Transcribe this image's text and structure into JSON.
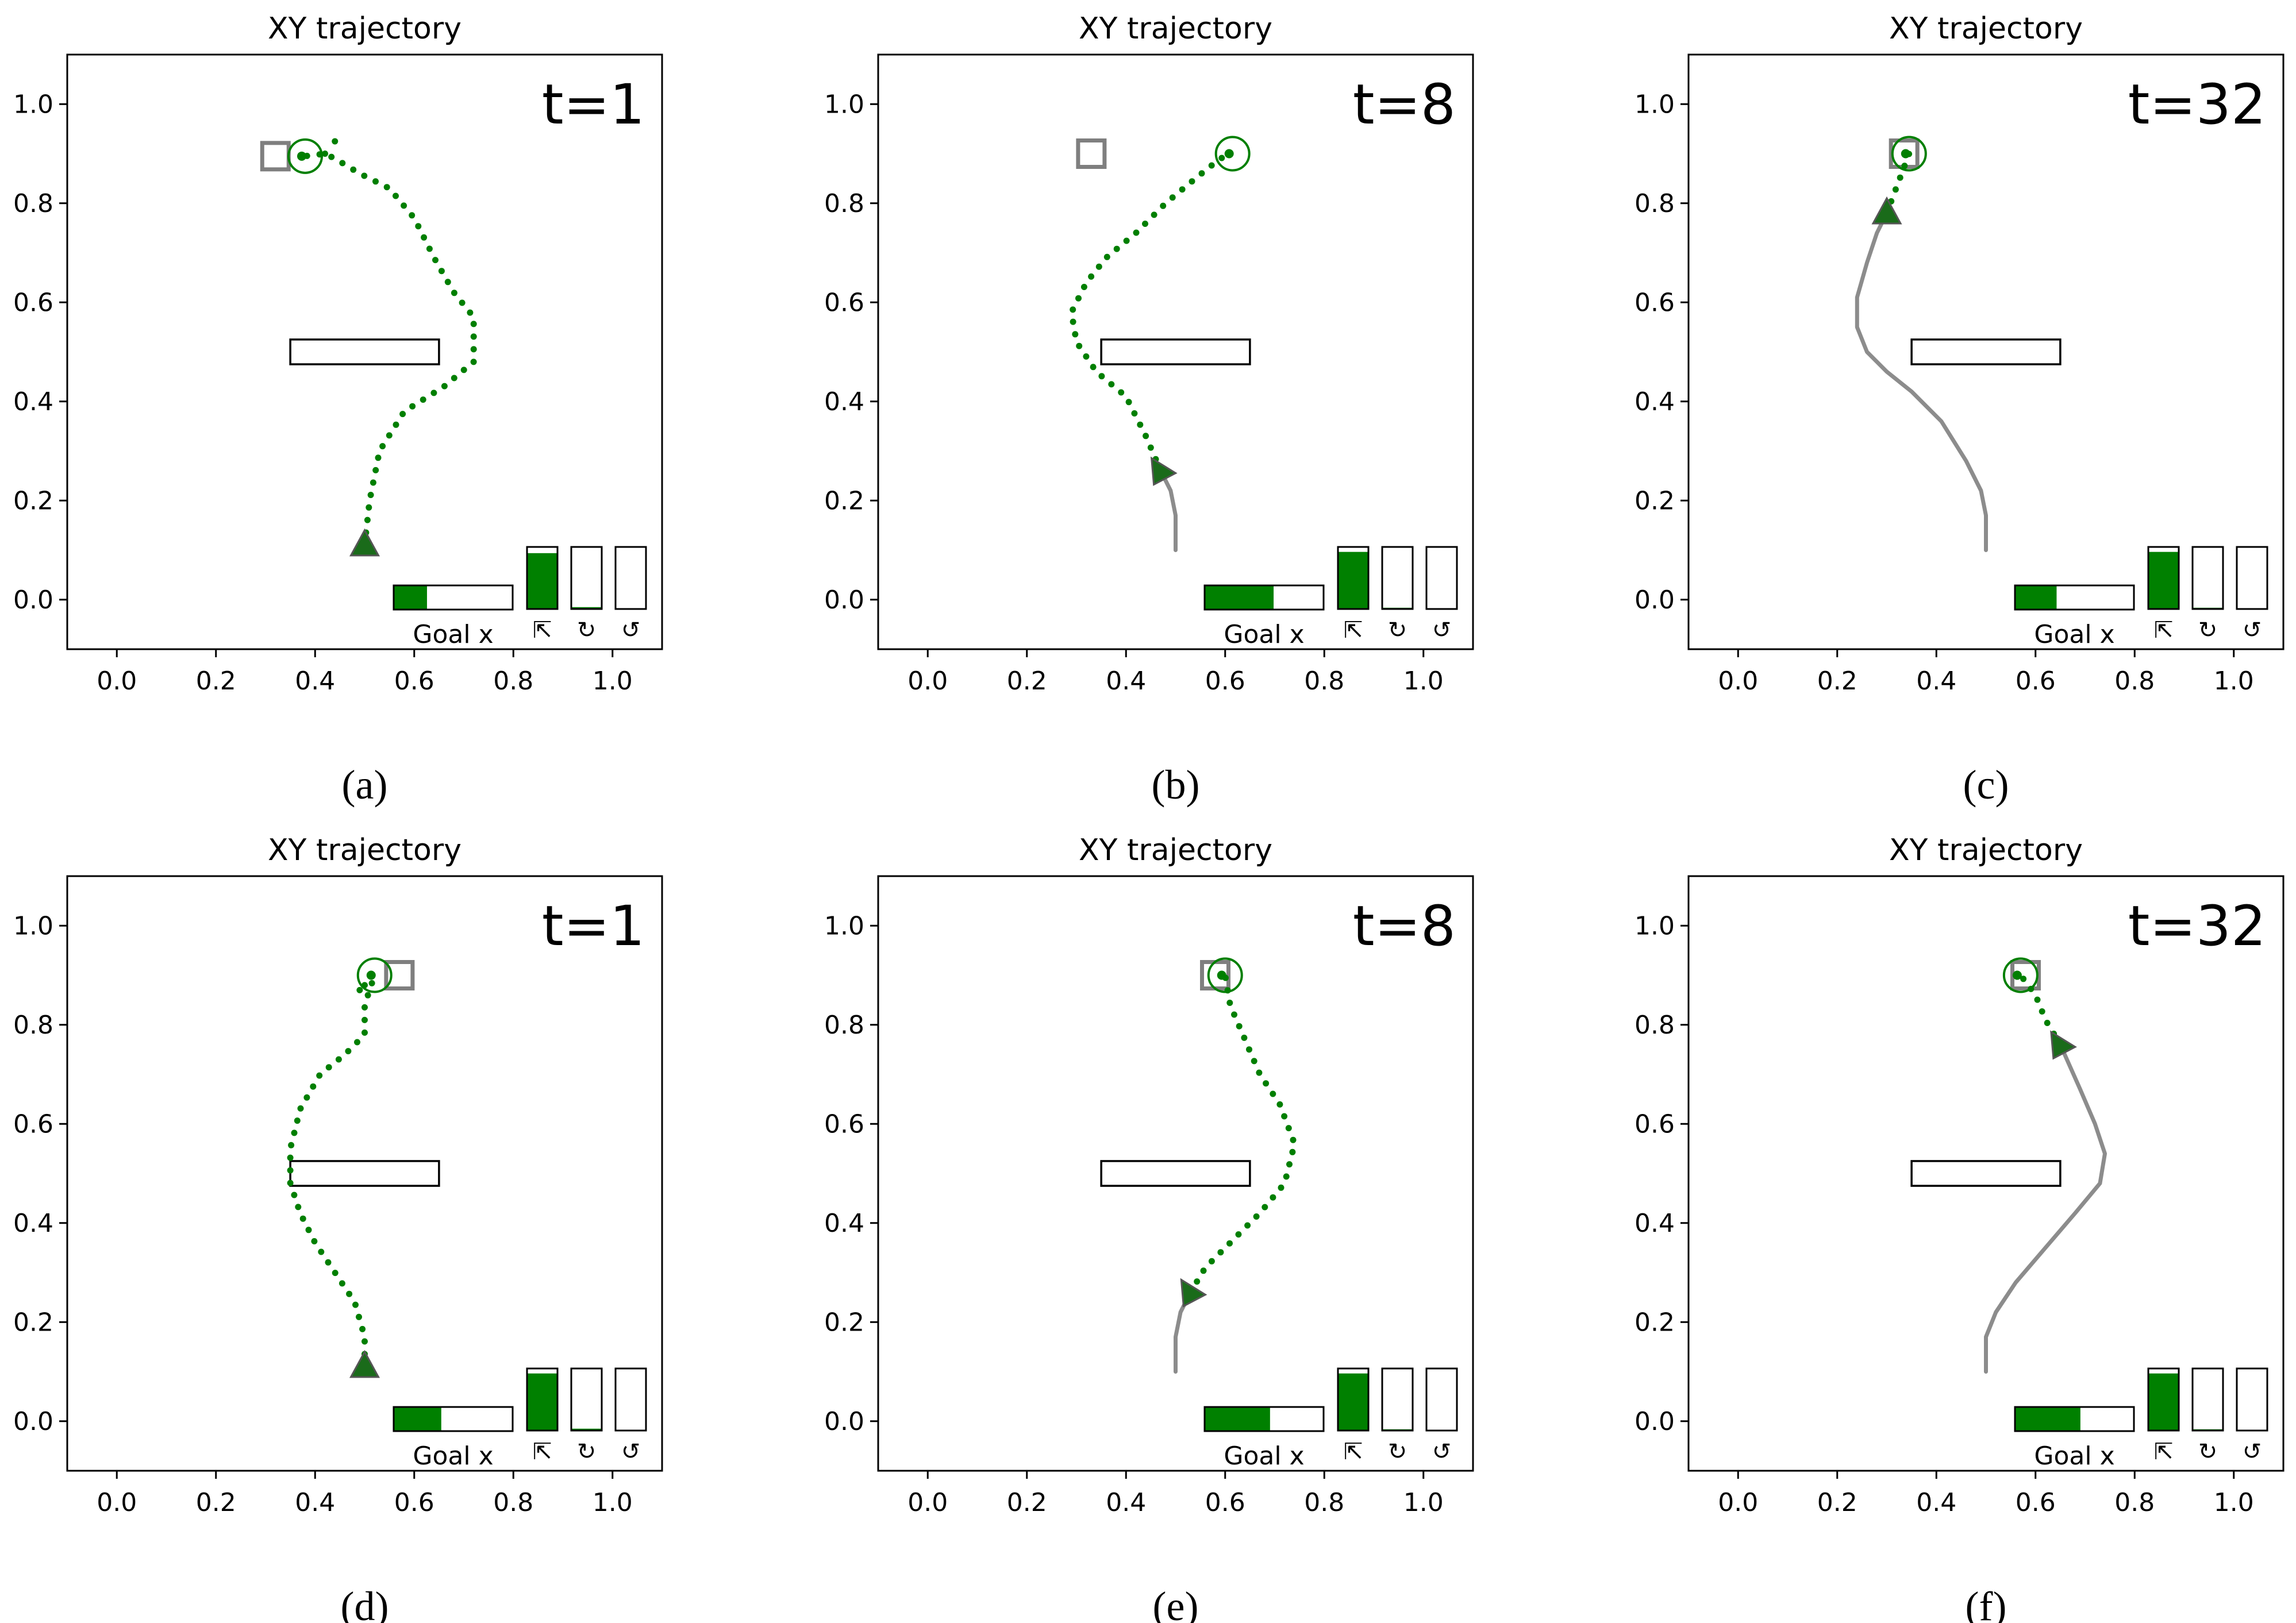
{
  "chart_data": [
    {
      "type": "scatter",
      "caption": "(a)",
      "title": "XY trajectory",
      "time_label": "t=1",
      "xlim": [
        -0.1,
        1.1
      ],
      "ylim": [
        -0.1,
        1.1
      ],
      "xticks": [
        "0.0",
        "0.2",
        "0.4",
        "0.6",
        "0.8",
        "1.0"
      ],
      "yticks": [
        "0.0",
        "0.2",
        "0.4",
        "0.6",
        "0.8",
        "1.0"
      ],
      "obstacle": {
        "x0": 0.35,
        "x1": 0.65,
        "y0": 0.475,
        "y1": 0.525
      },
      "goal_square": [
        0.32,
        0.895
      ],
      "goal_circle": [
        0.38,
        0.895
      ],
      "start_marker": [
        0.5,
        0.11
      ],
      "marker_heading": "up",
      "trajectory": [
        [
          0.5,
          0.11
        ],
        [
          0.51,
          0.2
        ],
        [
          0.53,
          0.3
        ],
        [
          0.58,
          0.38
        ],
        [
          0.66,
          0.43
        ],
        [
          0.72,
          0.48
        ],
        [
          0.72,
          0.57
        ],
        [
          0.68,
          0.62
        ],
        [
          0.64,
          0.69
        ],
        [
          0.6,
          0.77
        ],
        [
          0.55,
          0.83
        ],
        [
          0.49,
          0.86
        ],
        [
          0.44,
          0.89
        ],
        [
          0.42,
          0.9
        ],
        [
          0.38,
          0.895
        ]
      ],
      "trajectory_extra": [
        [
          0.42,
          0.9
        ],
        [
          0.44,
          0.925
        ]
      ],
      "gray_path": [],
      "goal_x_fill": 0.28,
      "goal_x_label": "Goal x",
      "action_fills": [
        0.9,
        0.03,
        0.0
      ],
      "action_icons": [
        "⇱",
        "↻",
        "↺"
      ]
    },
    {
      "type": "scatter",
      "caption": "(b)",
      "title": "XY trajectory",
      "time_label": "t=8",
      "xlim": [
        -0.1,
        1.1
      ],
      "ylim": [
        -0.1,
        1.1
      ],
      "xticks": [
        "0.0",
        "0.2",
        "0.4",
        "0.6",
        "0.8",
        "1.0"
      ],
      "yticks": [
        "0.0",
        "0.2",
        "0.4",
        "0.6",
        "0.8",
        "1.0"
      ],
      "obstacle": {
        "x0": 0.35,
        "x1": 0.65,
        "y0": 0.475,
        "y1": 0.525
      },
      "goal_square": [
        0.33,
        0.9
      ],
      "goal_circle": [
        0.615,
        0.9
      ],
      "start_marker": [
        0.47,
        0.26
      ],
      "marker_heading": "right",
      "trajectory": [
        [
          0.47,
          0.26
        ],
        [
          0.44,
          0.33
        ],
        [
          0.4,
          0.41
        ],
        [
          0.34,
          0.46
        ],
        [
          0.3,
          0.52
        ],
        [
          0.29,
          0.58
        ],
        [
          0.32,
          0.64
        ],
        [
          0.36,
          0.69
        ],
        [
          0.42,
          0.74
        ],
        [
          0.48,
          0.8
        ],
        [
          0.54,
          0.85
        ],
        [
          0.59,
          0.89
        ],
        [
          0.615,
          0.9
        ]
      ],
      "trajectory_extra": [],
      "gray_path": [
        [
          0.5,
          0.1
        ],
        [
          0.5,
          0.17
        ],
        [
          0.49,
          0.22
        ],
        [
          0.47,
          0.26
        ]
      ],
      "goal_x_fill": 0.58,
      "goal_x_label": "Goal x",
      "action_fills": [
        0.92,
        0.02,
        0.0
      ],
      "action_icons": [
        "⇱",
        "↻",
        "↺"
      ]
    },
    {
      "type": "scatter",
      "caption": "(c)",
      "title": "XY trajectory",
      "time_label": "t=32",
      "xlim": [
        -0.1,
        1.1
      ],
      "ylim": [
        -0.1,
        1.1
      ],
      "xticks": [
        "0.0",
        "0.2",
        "0.4",
        "0.6",
        "0.8",
        "1.0"
      ],
      "yticks": [
        "0.0",
        "0.2",
        "0.4",
        "0.6",
        "0.8",
        "1.0"
      ],
      "obstacle": {
        "x0": 0.35,
        "x1": 0.65,
        "y0": 0.475,
        "y1": 0.525
      },
      "goal_square": [
        0.335,
        0.9
      ],
      "goal_circle": [
        0.345,
        0.9
      ],
      "start_marker": [
        0.3,
        0.78
      ],
      "marker_heading": "up",
      "trajectory": [
        [
          0.3,
          0.78
        ],
        [
          0.315,
          0.82
        ],
        [
          0.33,
          0.86
        ],
        [
          0.345,
          0.9
        ]
      ],
      "trajectory_extra": [],
      "gray_path": [
        [
          0.5,
          0.1
        ],
        [
          0.5,
          0.17
        ],
        [
          0.49,
          0.22
        ],
        [
          0.46,
          0.28
        ],
        [
          0.41,
          0.36
        ],
        [
          0.35,
          0.42
        ],
        [
          0.3,
          0.46
        ],
        [
          0.26,
          0.5
        ],
        [
          0.24,
          0.55
        ],
        [
          0.24,
          0.61
        ],
        [
          0.26,
          0.68
        ],
        [
          0.28,
          0.74
        ],
        [
          0.3,
          0.78
        ]
      ],
      "goal_x_fill": 0.35,
      "goal_x_label": "Goal x",
      "action_fills": [
        0.92,
        0.02,
        0.0
      ],
      "action_icons": [
        "⇱",
        "↻",
        "↺"
      ]
    },
    {
      "type": "scatter",
      "caption": "(d)",
      "title": "XY trajectory",
      "time_label": "t=1",
      "xlim": [
        -0.1,
        1.1
      ],
      "ylim": [
        -0.1,
        1.1
      ],
      "xticks": [
        "0.0",
        "0.2",
        "0.4",
        "0.6",
        "0.8",
        "1.0"
      ],
      "yticks": [
        "0.0",
        "0.2",
        "0.4",
        "0.6",
        "0.8",
        "1.0"
      ],
      "obstacle": {
        "x0": 0.35,
        "x1": 0.65,
        "y0": 0.475,
        "y1": 0.525
      },
      "goal_square": [
        0.57,
        0.9
      ],
      "goal_circle": [
        0.52,
        0.9
      ],
      "start_marker": [
        0.5,
        0.11
      ],
      "marker_heading": "up",
      "trajectory": [
        [
          0.5,
          0.11
        ],
        [
          0.5,
          0.17
        ],
        [
          0.48,
          0.24
        ],
        [
          0.44,
          0.3
        ],
        [
          0.4,
          0.36
        ],
        [
          0.37,
          0.42
        ],
        [
          0.35,
          0.48
        ],
        [
          0.35,
          0.55
        ],
        [
          0.37,
          0.63
        ],
        [
          0.41,
          0.7
        ],
        [
          0.46,
          0.74
        ],
        [
          0.5,
          0.78
        ],
        [
          0.5,
          0.84
        ],
        [
          0.52,
          0.9
        ]
      ],
      "trajectory_extra": [
        [
          0.49,
          0.87
        ],
        [
          0.5,
          0.88
        ]
      ],
      "gray_path": [],
      "goal_x_fill": 0.4,
      "goal_x_label": "Goal x",
      "action_fills": [
        0.92,
        0.03,
        0.0
      ],
      "action_icons": [
        "⇱",
        "↻",
        "↺"
      ]
    },
    {
      "type": "scatter",
      "caption": "(e)",
      "title": "XY trajectory",
      "time_label": "t=8",
      "xlim": [
        -0.1,
        1.1
      ],
      "ylim": [
        -0.1,
        1.1
      ],
      "xticks": [
        "0.0",
        "0.2",
        "0.4",
        "0.6",
        "0.8",
        "1.0"
      ],
      "yticks": [
        "0.0",
        "0.2",
        "0.4",
        "0.6",
        "0.8",
        "1.0"
      ],
      "obstacle": {
        "x0": 0.35,
        "x1": 0.65,
        "y0": 0.475,
        "y1": 0.525
      },
      "goal_square": [
        0.58,
        0.9
      ],
      "goal_circle": [
        0.6,
        0.9
      ],
      "start_marker": [
        0.53,
        0.26
      ],
      "marker_heading": "right",
      "trajectory": [
        [
          0.53,
          0.26
        ],
        [
          0.56,
          0.31
        ],
        [
          0.61,
          0.36
        ],
        [
          0.67,
          0.42
        ],
        [
          0.72,
          0.48
        ],
        [
          0.74,
          0.56
        ],
        [
          0.71,
          0.64
        ],
        [
          0.67,
          0.7
        ],
        [
          0.64,
          0.77
        ],
        [
          0.61,
          0.84
        ],
        [
          0.6,
          0.9
        ]
      ],
      "trajectory_extra": [],
      "gray_path": [
        [
          0.5,
          0.1
        ],
        [
          0.5,
          0.17
        ],
        [
          0.51,
          0.22
        ],
        [
          0.53,
          0.26
        ]
      ],
      "goal_x_fill": 0.55,
      "goal_x_label": "Goal x",
      "action_fills": [
        0.92,
        0.02,
        0.0
      ],
      "action_icons": [
        "⇱",
        "↻",
        "↺"
      ]
    },
    {
      "type": "scatter",
      "caption": "(f)",
      "title": "XY trajectory",
      "time_label": "t=32",
      "xlim": [
        -0.1,
        1.1
      ],
      "ylim": [
        -0.1,
        1.1
      ],
      "xticks": [
        "0.0",
        "0.2",
        "0.4",
        "0.6",
        "0.8",
        "1.0"
      ],
      "yticks": [
        "0.0",
        "0.2",
        "0.4",
        "0.6",
        "0.8",
        "1.0"
      ],
      "obstacle": {
        "x0": 0.35,
        "x1": 0.65,
        "y0": 0.475,
        "y1": 0.525
      },
      "goal_square": [
        0.58,
        0.9
      ],
      "goal_circle": [
        0.57,
        0.9
      ],
      "start_marker": [
        0.65,
        0.76
      ],
      "marker_heading": "right",
      "trajectory": [
        [
          0.65,
          0.76
        ],
        [
          0.62,
          0.81
        ],
        [
          0.6,
          0.86
        ],
        [
          0.57,
          0.9
        ]
      ],
      "trajectory_extra": [],
      "gray_path": [
        [
          0.5,
          0.1
        ],
        [
          0.5,
          0.17
        ],
        [
          0.52,
          0.22
        ],
        [
          0.56,
          0.28
        ],
        [
          0.62,
          0.35
        ],
        [
          0.68,
          0.42
        ],
        [
          0.73,
          0.48
        ],
        [
          0.74,
          0.54
        ],
        [
          0.72,
          0.6
        ],
        [
          0.69,
          0.67
        ],
        [
          0.65,
          0.76
        ]
      ],
      "goal_x_fill": 0.55,
      "goal_x_label": "Goal x",
      "action_fills": [
        0.92,
        0.02,
        0.0
      ],
      "action_icons": [
        "⇱",
        "↻",
        "↺"
      ]
    }
  ],
  "colors": {
    "trajectory": "#007f00",
    "marker_fill": "#1a6b1a",
    "gray_path": "#808080",
    "goal_square": "#7f7f7f",
    "bar_fill": "#008000",
    "frame": "#000000"
  }
}
